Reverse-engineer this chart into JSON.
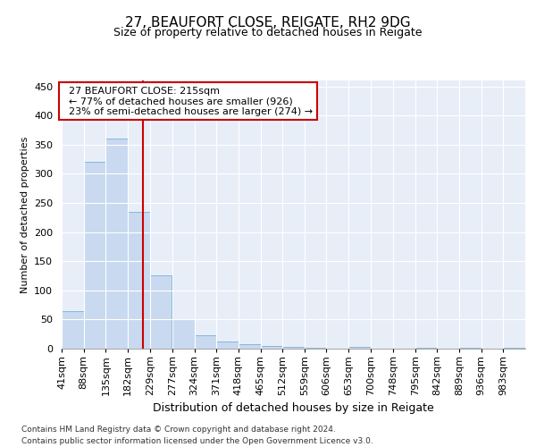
{
  "title1": "27, BEAUFORT CLOSE, REIGATE, RH2 9DG",
  "title2": "Size of property relative to detached houses in Reigate",
  "xlabel": "Distribution of detached houses by size in Reigate",
  "ylabel": "Number of detached properties",
  "footer1": "Contains HM Land Registry data © Crown copyright and database right 2024.",
  "footer2": "Contains public sector information licensed under the Open Government Licence v3.0.",
  "annotation_line1": "27 BEAUFORT CLOSE: 215sqm",
  "annotation_line2": "← 77% of detached houses are smaller (926)",
  "annotation_line3": "23% of semi-detached houses are larger (274) →",
  "property_size": 215,
  "bin_edges": [
    41,
    88,
    135,
    182,
    229,
    277,
    324,
    371,
    418,
    465,
    512,
    559,
    606,
    653,
    700,
    748,
    795,
    842,
    889,
    936,
    983
  ],
  "bar_heights": [
    65,
    320,
    360,
    234,
    125,
    50,
    23,
    13,
    8,
    5,
    3,
    1,
    0,
    3,
    0,
    0,
    2,
    0,
    2,
    0,
    2
  ],
  "bar_color": "#c8d9f0",
  "bar_edge_color": "#7bafd4",
  "vline_color": "#cc0000",
  "vline_x": 215,
  "ylim": [
    0,
    460
  ],
  "yticks": [
    0,
    50,
    100,
    150,
    200,
    250,
    300,
    350,
    400,
    450
  ],
  "plot_bg_color": "#e8eef8",
  "fig_bg_color": "#ffffff",
  "grid_color": "#ffffff",
  "annotation_box_color": "#ffffff",
  "annotation_box_edge": "#cc0000",
  "title1_fontsize": 11,
  "title2_fontsize": 9,
  "ylabel_fontsize": 8,
  "xlabel_fontsize": 9,
  "xtick_fontsize": 8,
  "ytick_fontsize": 8,
  "footer_fontsize": 6.5
}
